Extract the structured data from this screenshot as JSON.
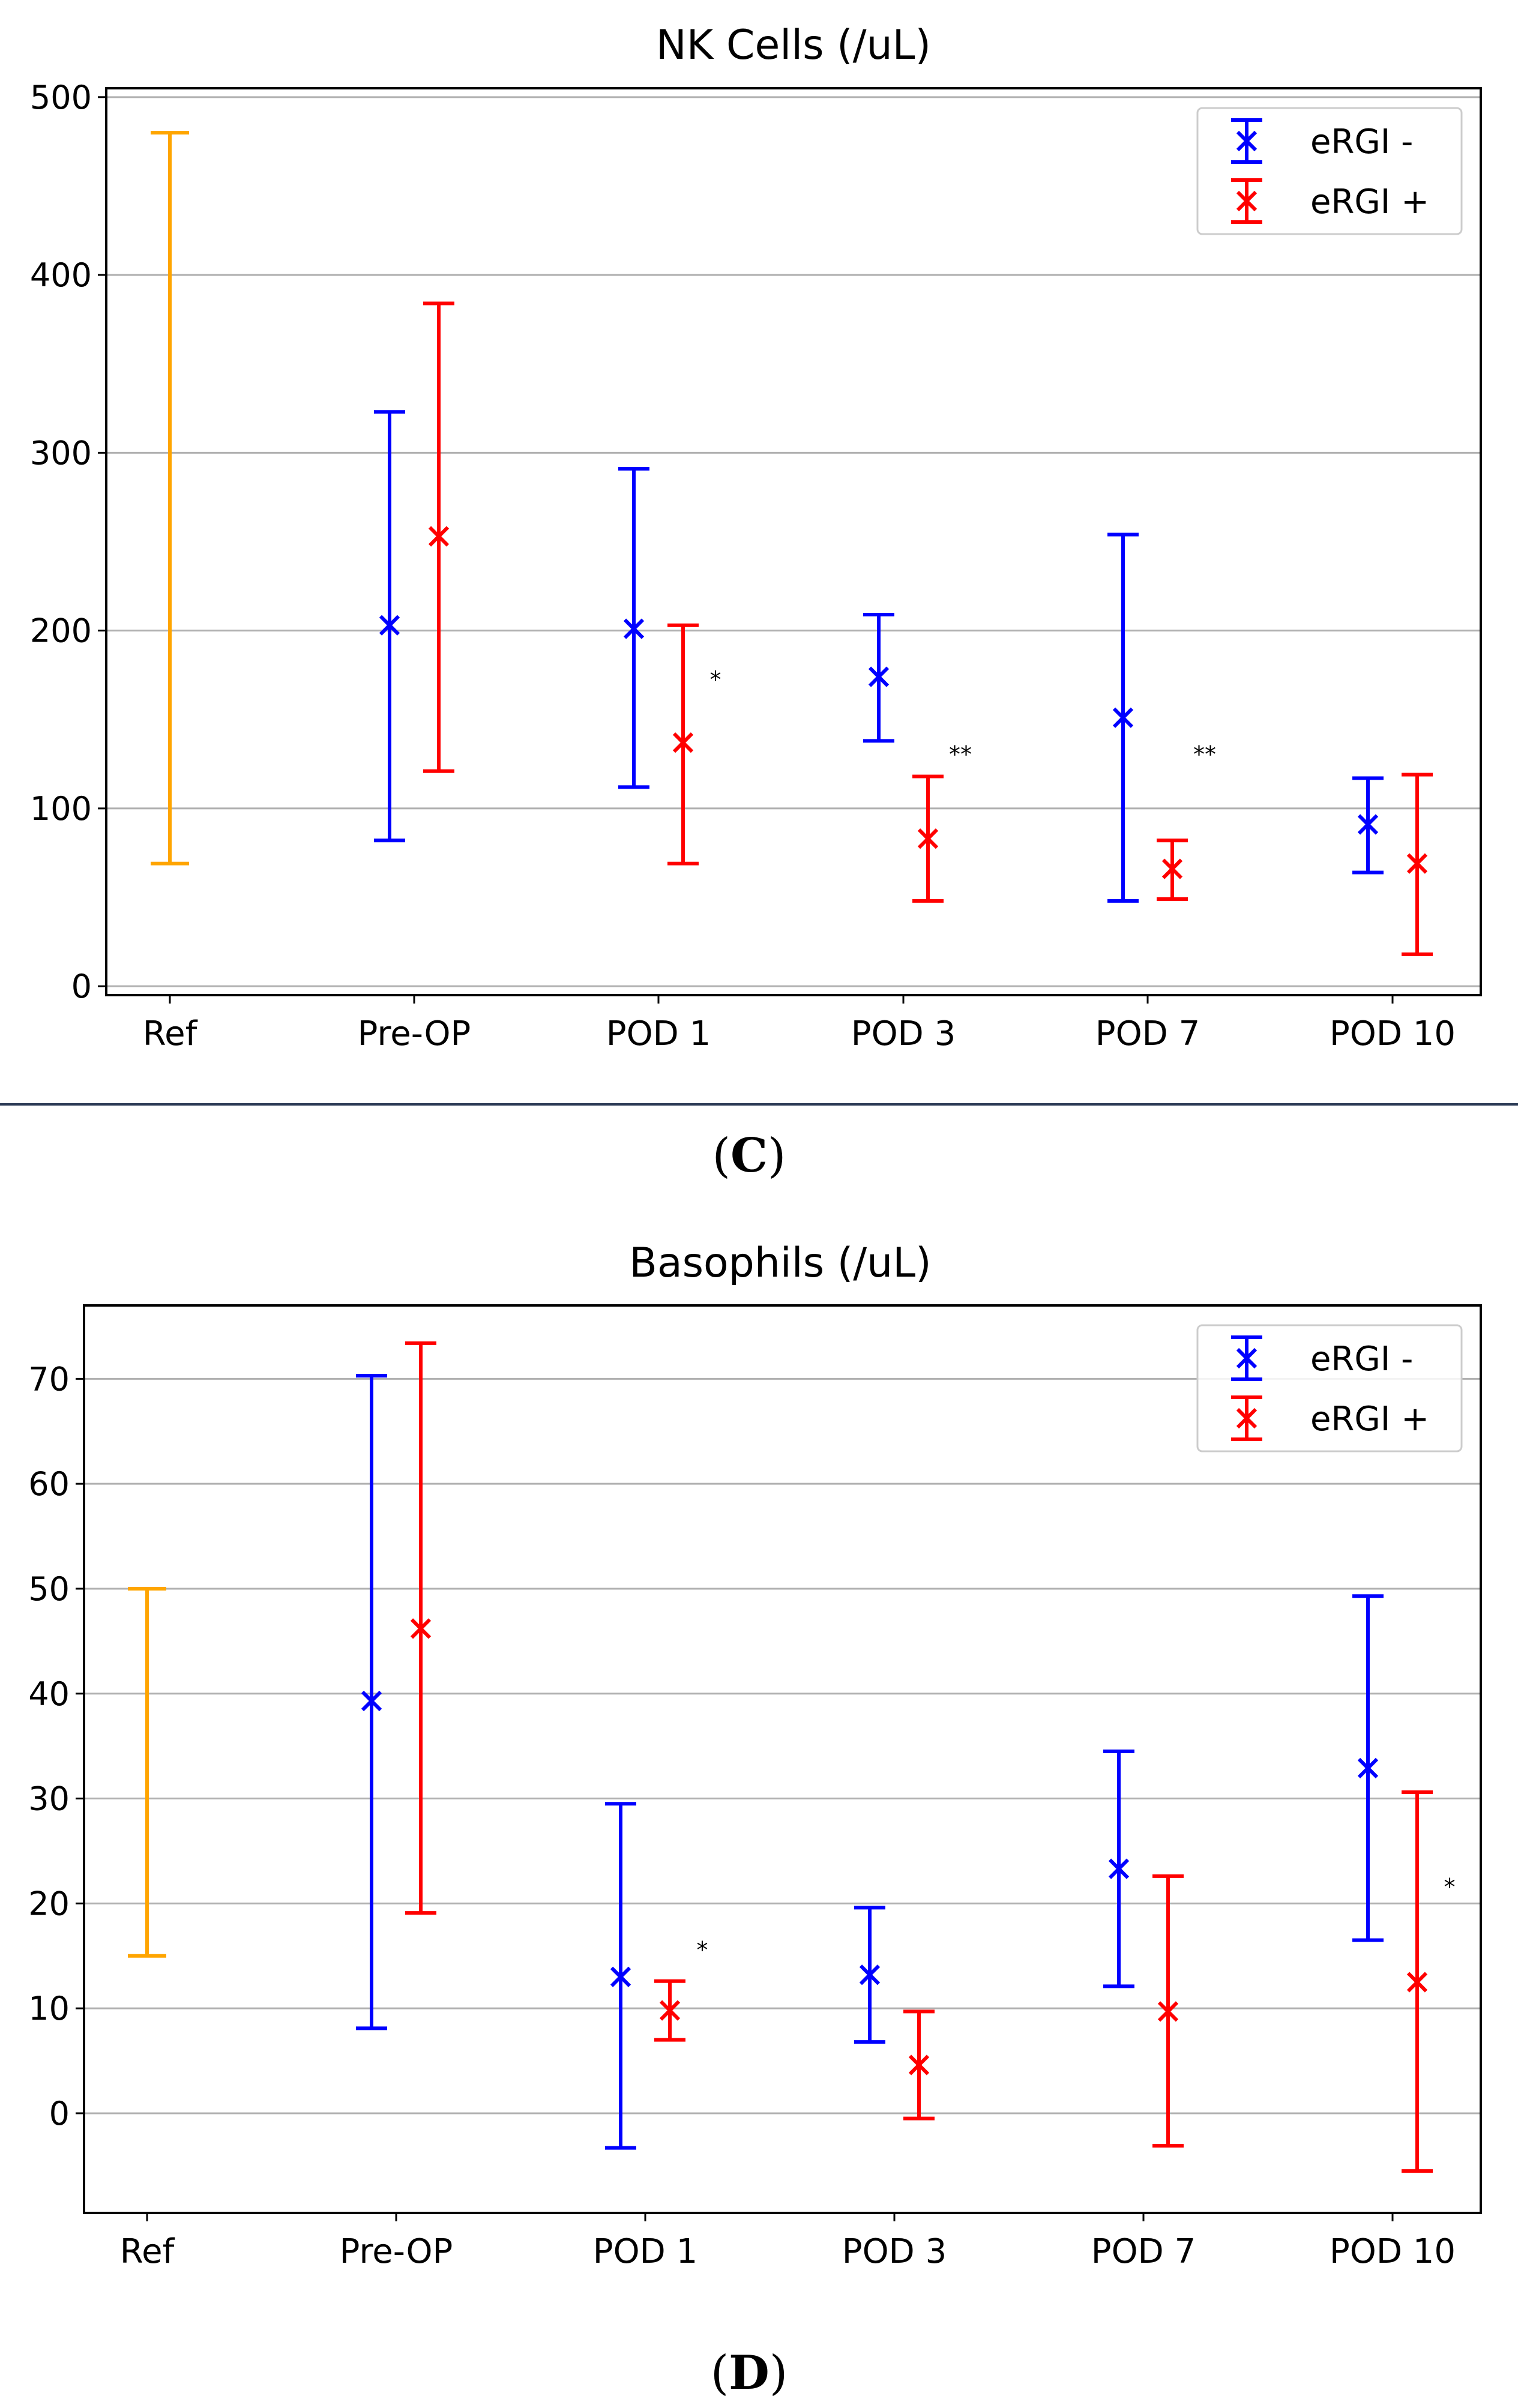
{
  "panels": [
    {
      "label_open": "(",
      "label_letter": "C",
      "label_close": ")",
      "chart_data": {
        "type": "errorbar",
        "title": "NK Cells (/uL)",
        "xlabel": "",
        "ylabel": "",
        "categories": [
          "Ref",
          "Pre-OP",
          "POD 1",
          "POD 3",
          "POD 7",
          "POD 10"
        ],
        "ylim": [
          -5,
          505
        ],
        "yticks": [
          0,
          100,
          200,
          300,
          400,
          500
        ],
        "grid": "horizontal",
        "legend_position": "top-right",
        "reference": {
          "category": "Ref",
          "low": 69,
          "high": 480,
          "color": "#FFA500"
        },
        "series": [
          {
            "name": "eRGI -",
            "color": "#0000FF",
            "points": [
              {
                "category": "Pre-OP",
                "value": 203,
                "low": 82,
                "high": 323
              },
              {
                "category": "POD 1",
                "value": 201,
                "low": 112,
                "high": 291
              },
              {
                "category": "POD 3",
                "value": 174,
                "low": 138,
                "high": 209
              },
              {
                "category": "POD 7",
                "value": 151,
                "low": 48,
                "high": 254
              },
              {
                "category": "POD 10",
                "value": 91,
                "low": 64,
                "high": 117
              }
            ]
          },
          {
            "name": "eRGI +",
            "color": "#FF0000",
            "points": [
              {
                "category": "Pre-OP",
                "value": 253,
                "low": 121,
                "high": 384
              },
              {
                "category": "POD 1",
                "value": 137,
                "low": 69,
                "high": 203
              },
              {
                "category": "POD 3",
                "value": 83,
                "low": 48,
                "high": 118
              },
              {
                "category": "POD 7",
                "value": 66,
                "low": 49,
                "high": 82
              },
              {
                "category": "POD 10",
                "value": 69,
                "low": 18,
                "high": 119
              }
            ]
          }
        ],
        "annotations": [
          {
            "category": "POD 1",
            "text": "*",
            "y": 172
          },
          {
            "category": "POD 3",
            "text": "**",
            "y": 130
          },
          {
            "category": "POD 7",
            "text": "**",
            "y": 130
          }
        ]
      }
    },
    {
      "label_open": "(",
      "label_letter": "D",
      "label_close": ")",
      "chart_data": {
        "type": "errorbar",
        "title": "Basophils (/uL)",
        "xlabel": "",
        "ylabel": "",
        "categories": [
          "Ref",
          "Pre-OP",
          "POD 1",
          "POD 3",
          "POD 7",
          "POD 10"
        ],
        "ylim": [
          -9.5,
          77
        ],
        "yticks": [
          0,
          10,
          20,
          30,
          40,
          50,
          60,
          70
        ],
        "grid": "horizontal",
        "legend_position": "top-right",
        "reference": {
          "category": "Ref",
          "low": 15,
          "high": 50,
          "color": "#FFA500"
        },
        "series": [
          {
            "name": "eRGI -",
            "color": "#0000FF",
            "points": [
              {
                "category": "Pre-OP",
                "value": 39.3,
                "low": 8.1,
                "high": 70.3
              },
              {
                "category": "POD 1",
                "value": 13,
                "low": -3.3,
                "high": 29.5
              },
              {
                "category": "POD 3",
                "value": 13.2,
                "low": 6.8,
                "high": 19.6
              },
              {
                "category": "POD 7",
                "value": 23.3,
                "low": 12.1,
                "high": 34.5
              },
              {
                "category": "POD 10",
                "value": 32.9,
                "low": 16.5,
                "high": 49.3
              }
            ]
          },
          {
            "name": "eRGI +",
            "color": "#FF0000",
            "points": [
              {
                "category": "Pre-OP",
                "value": 46.2,
                "low": 19.1,
                "high": 73.4
              },
              {
                "category": "POD 1",
                "value": 9.8,
                "low": 7,
                "high": 12.6
              },
              {
                "category": "POD 3",
                "value": 4.6,
                "low": -0.5,
                "high": 9.7
              },
              {
                "category": "POD 7",
                "value": 9.7,
                "low": -3.1,
                "high": 22.6
              },
              {
                "category": "POD 10",
                "value": 12.5,
                "low": -5.5,
                "high": 30.6
              }
            ]
          }
        ],
        "annotations": [
          {
            "category": "POD 1",
            "text": "*",
            "y": 15.5
          },
          {
            "category": "POD 10",
            "text": "*",
            "y": 21.5
          }
        ]
      }
    }
  ]
}
